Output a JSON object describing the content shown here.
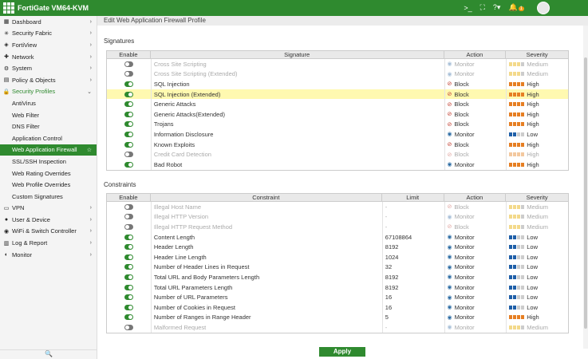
{
  "app": {
    "title": "FortiGate VM64-KVM"
  },
  "header": {
    "notif_count": "1"
  },
  "sidebar": {
    "items": [
      {
        "label": "Dashboard",
        "icon": "dashboard-icon",
        "chevron": true
      },
      {
        "label": "Security Fabric",
        "icon": "fabric-icon",
        "chevron": true
      },
      {
        "label": "FortiView",
        "icon": "fortiview-icon",
        "chevron": true
      },
      {
        "label": "Network",
        "icon": "network-icon",
        "chevron": true
      },
      {
        "label": "System",
        "icon": "gear-icon",
        "chevron": true
      },
      {
        "label": "Policy & Objects",
        "icon": "policy-icon",
        "chevron": true
      },
      {
        "label": "Security Profiles",
        "icon": "lock-icon",
        "chevron": true,
        "open": true
      },
      {
        "label": "AntiVirus",
        "sub": true
      },
      {
        "label": "Web Filter",
        "sub": true
      },
      {
        "label": "DNS Filter",
        "sub": true
      },
      {
        "label": "Application Control",
        "sub": true
      },
      {
        "label": "Web Application Firewall",
        "sub": true,
        "active": true
      },
      {
        "label": "SSL/SSH Inspection",
        "sub": true
      },
      {
        "label": "Web Rating Overrides",
        "sub": true
      },
      {
        "label": "Web Profile Overrides",
        "sub": true
      },
      {
        "label": "Custom Signatures",
        "sub": true
      },
      {
        "label": "VPN",
        "icon": "vpn-icon",
        "chevron": true
      },
      {
        "label": "User & Device",
        "icon": "user-icon",
        "chevron": true
      },
      {
        "label": "WiFi & Switch Controller",
        "icon": "wifi-icon",
        "chevron": true
      },
      {
        "label": "Log & Report",
        "icon": "chart-icon",
        "chevron": true
      },
      {
        "label": "Monitor",
        "icon": "monitor-icon",
        "chevron": true
      }
    ]
  },
  "page": {
    "title": "Edit Web Application Firewall Profile"
  },
  "signatures": {
    "title": "Signatures",
    "headers": {
      "enable": "Enable",
      "name": "Signature",
      "action": "Action",
      "severity": "Severity"
    },
    "rows": [
      {
        "enabled": false,
        "name": "Cross Site Scripting",
        "action": "Monitor",
        "severity": "Medium"
      },
      {
        "enabled": false,
        "name": "Cross Site Scripting (Extended)",
        "action": "Monitor",
        "severity": "Medium"
      },
      {
        "enabled": true,
        "name": "SQL Injection",
        "action": "Block",
        "severity": "High"
      },
      {
        "enabled": true,
        "name": "SQL Injection (Extended)",
        "action": "Block",
        "severity": "High",
        "highlight": true
      },
      {
        "enabled": true,
        "name": "Generic Attacks",
        "action": "Block",
        "severity": "High"
      },
      {
        "enabled": true,
        "name": "Generic Attacks(Extended)",
        "action": "Block",
        "severity": "High"
      },
      {
        "enabled": true,
        "name": "Trojans",
        "action": "Block",
        "severity": "High"
      },
      {
        "enabled": true,
        "name": "Information Disclosure",
        "action": "Monitor",
        "severity": "Low"
      },
      {
        "enabled": true,
        "name": "Known Exploits",
        "action": "Block",
        "severity": "High"
      },
      {
        "enabled": false,
        "name": "Credit Card Detection",
        "action": "Block",
        "severity": "High"
      },
      {
        "enabled": true,
        "name": "Bad Robot",
        "action": "Monitor",
        "severity": "High"
      }
    ]
  },
  "constraints": {
    "title": "Constraints",
    "headers": {
      "enable": "Enable",
      "name": "Constraint",
      "limit": "Limit",
      "action": "Action",
      "severity": "Severity"
    },
    "rows": [
      {
        "enabled": false,
        "name": "Illegal Host Name",
        "limit": "-",
        "action": "Block",
        "severity": "Medium"
      },
      {
        "enabled": false,
        "name": "Illegal HTTP Version",
        "limit": "-",
        "action": "Monitor",
        "severity": "Medium"
      },
      {
        "enabled": false,
        "name": "Illegal HTTP Request Method",
        "limit": "-",
        "action": "Block",
        "severity": "Medium"
      },
      {
        "enabled": true,
        "name": "Content Length",
        "limit": "67108864",
        "action": "Monitor",
        "severity": "Low"
      },
      {
        "enabled": true,
        "name": "Header Length",
        "limit": "8192",
        "action": "Monitor",
        "severity": "Low"
      },
      {
        "enabled": true,
        "name": "Header Line Length",
        "limit": "1024",
        "action": "Monitor",
        "severity": "Low"
      },
      {
        "enabled": true,
        "name": "Number of Header Lines in Request",
        "limit": "32",
        "action": "Monitor",
        "severity": "Low"
      },
      {
        "enabled": true,
        "name": "Total URL and Body Parameters Length",
        "limit": "8192",
        "action": "Monitor",
        "severity": "Low"
      },
      {
        "enabled": true,
        "name": "Total URL Parameters Length",
        "limit": "8192",
        "action": "Monitor",
        "severity": "Low"
      },
      {
        "enabled": true,
        "name": "Number of URL Parameters",
        "limit": "16",
        "action": "Monitor",
        "severity": "Low"
      },
      {
        "enabled": true,
        "name": "Number of Cookies in Request",
        "limit": "16",
        "action": "Monitor",
        "severity": "Low"
      },
      {
        "enabled": true,
        "name": "Number of Ranges in Range Header",
        "limit": "5",
        "action": "Monitor",
        "severity": "High"
      },
      {
        "enabled": false,
        "name": "Malformed Request",
        "limit": "-",
        "action": "Monitor",
        "severity": "Medium"
      }
    ]
  },
  "footer": {
    "apply_label": "Apply"
  },
  "colors": {
    "brand": "#2f8a2f",
    "block": "#c0392b",
    "monitor": "#2e6da4",
    "high": "#e67e22",
    "medium": "#f0b400",
    "low": "#1f5fa8"
  }
}
